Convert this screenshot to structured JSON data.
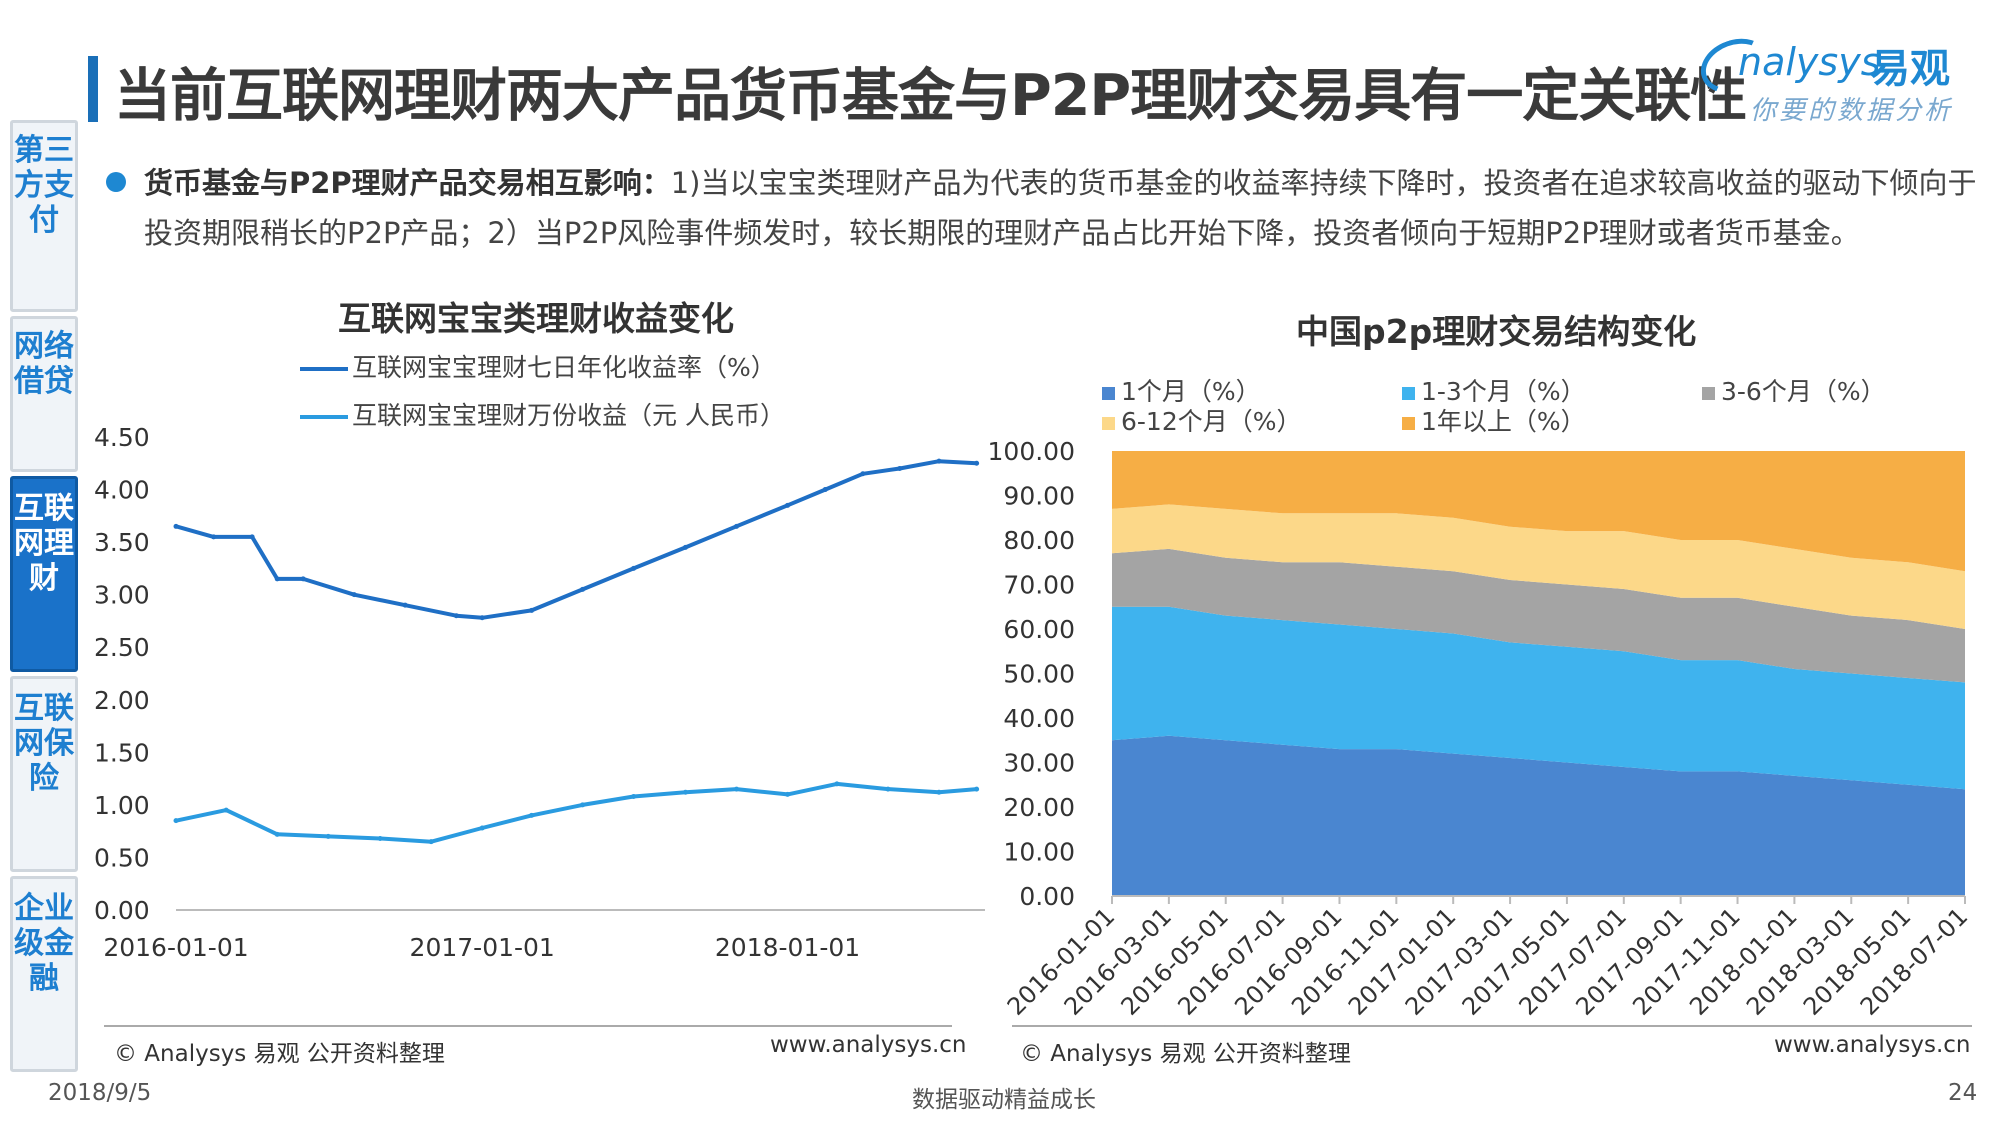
{
  "page": {
    "title": "当前互联网理财两大产品货币基金与P2P理财交易具有一定关联性",
    "brand": {
      "en": "nalysys",
      "cn": "易观",
      "slogan": "你要的数据分析"
    },
    "bullet_label": "货币基金与P2P理财产品交易相互影响：",
    "bullet_text": "1)当以宝宝类理财产品为代表的货币基金的收益率持续下降时，投资者在追求较高收益的驱动下倾向于投资期限稍长的P2P产品；2）当P2P风险事件频发时，较长期限的理财产品占比开始下降，投资者倾向于短期P2P理财或者货币基金。",
    "footer_date": "2018/9/5",
    "footer_center": "数据驱动精益成长",
    "page_number": "24",
    "source_left": "© Analysys 易观 公开资料整理",
    "url_left": "www.analysys.cn",
    "source_right": "© Analysys 易观 公开资料整理",
    "url_right": "www.analysys.cn"
  },
  "sidebar": {
    "items": [
      {
        "label": "第三方支付",
        "active": false
      },
      {
        "label": "网络借贷",
        "active": false
      },
      {
        "label": "互联网理财",
        "active": true
      },
      {
        "label": "互联网保险",
        "active": false
      },
      {
        "label": "企业级金融",
        "active": false
      }
    ]
  },
  "colors": {
    "accent": "#1e88d2",
    "line_yield": "#1f6fc5",
    "line_income": "#2a9be0",
    "m1": "#4a86d0",
    "m1_3": "#3fb3ee",
    "m3_6": "#a4a4a4",
    "m6_12": "#fcd889",
    "y1plus": "#f6ae45"
  },
  "chart_data": [
    {
      "type": "line",
      "title": "互联网宝宝类理财收益变化",
      "x_ticks": [
        "2016-01-01",
        "2017-01-01",
        "2018-01-01"
      ],
      "ylim": [
        0,
        4.5
      ],
      "y_ticks": [
        "4.50",
        "4.00",
        "3.50",
        "3.00",
        "2.50",
        "2.00",
        "1.50",
        "1.00",
        "0.50",
        "0.00"
      ],
      "series": [
        {
          "name": "互联网宝宝理财七日年化收益率（%）",
          "x": [
            "2016-01-01",
            "2016-02-15",
            "2016-04-01",
            "2016-05-01",
            "2016-06-01",
            "2016-08-01",
            "2016-10-01",
            "2016-12-01",
            "2017-01-01",
            "2017-03-01",
            "2017-05-01",
            "2017-07-01",
            "2017-09-01",
            "2017-11-01",
            "2018-01-01",
            "2018-02-15",
            "2018-04-01",
            "2018-05-15",
            "2018-07-01",
            "2018-08-15"
          ],
          "values": [
            3.65,
            3.55,
            3.55,
            3.15,
            3.15,
            3.0,
            2.9,
            2.8,
            2.78,
            2.85,
            3.05,
            3.25,
            3.45,
            3.65,
            3.85,
            4.0,
            4.15,
            4.2,
            4.27,
            4.25
          ]
        },
        {
          "name": "互联网宝宝理财万份收益（元 人民币）",
          "x": [
            "2016-01-01",
            "2016-03-01",
            "2016-05-01",
            "2016-07-01",
            "2016-09-01",
            "2016-11-01",
            "2017-01-01",
            "2017-03-01",
            "2017-05-01",
            "2017-07-01",
            "2017-09-01",
            "2017-11-01",
            "2018-01-01",
            "2018-03-01",
            "2018-05-01",
            "2018-07-01",
            "2018-08-15"
          ],
          "values": [
            0.85,
            0.95,
            0.72,
            0.7,
            0.68,
            0.65,
            0.78,
            0.9,
            1.0,
            1.08,
            1.12,
            1.15,
            1.1,
            1.2,
            1.15,
            1.12,
            1.15
          ]
        }
      ]
    },
    {
      "type": "area",
      "stacked": true,
      "title": "中国p2p理财交易结构变化",
      "ylim": [
        0,
        100
      ],
      "y_ticks": [
        "100.00",
        "90.00",
        "80.00",
        "70.00",
        "60.00",
        "50.00",
        "40.00",
        "30.00",
        "20.00",
        "10.00",
        "0.00"
      ],
      "categories": [
        "2016-01-01",
        "2016-03-01",
        "2016-05-01",
        "2016-07-01",
        "2016-09-01",
        "2016-11-01",
        "2017-01-01",
        "2017-03-01",
        "2017-05-01",
        "2017-07-01",
        "2017-09-01",
        "2017-11-01",
        "2018-01-01",
        "2018-03-01",
        "2018-05-01",
        "2018-07-01"
      ],
      "series": [
        {
          "name": "1个月（%）",
          "values": [
            35,
            36,
            35,
            34,
            33,
            33,
            32,
            31,
            30,
            29,
            28,
            28,
            27,
            26,
            25,
            24
          ]
        },
        {
          "name": "1-3个月（%）",
          "values": [
            30,
            29,
            28,
            28,
            28,
            27,
            27,
            26,
            26,
            26,
            25,
            25,
            24,
            24,
            24,
            24
          ]
        },
        {
          "name": "3-6个月（%）",
          "values": [
            12,
            13,
            13,
            13,
            14,
            14,
            14,
            14,
            14,
            14,
            14,
            14,
            14,
            13,
            13,
            12
          ]
        },
        {
          "name": "6-12个月（%）",
          "values": [
            10,
            10,
            11,
            11,
            11,
            12,
            12,
            12,
            12,
            13,
            13,
            13,
            13,
            13,
            13,
            13
          ]
        },
        {
          "name": "1年以上（%）",
          "values": [
            13,
            12,
            13,
            14,
            14,
            14,
            15,
            17,
            18,
            18,
            20,
            20,
            22,
            24,
            25,
            27
          ]
        }
      ]
    }
  ]
}
